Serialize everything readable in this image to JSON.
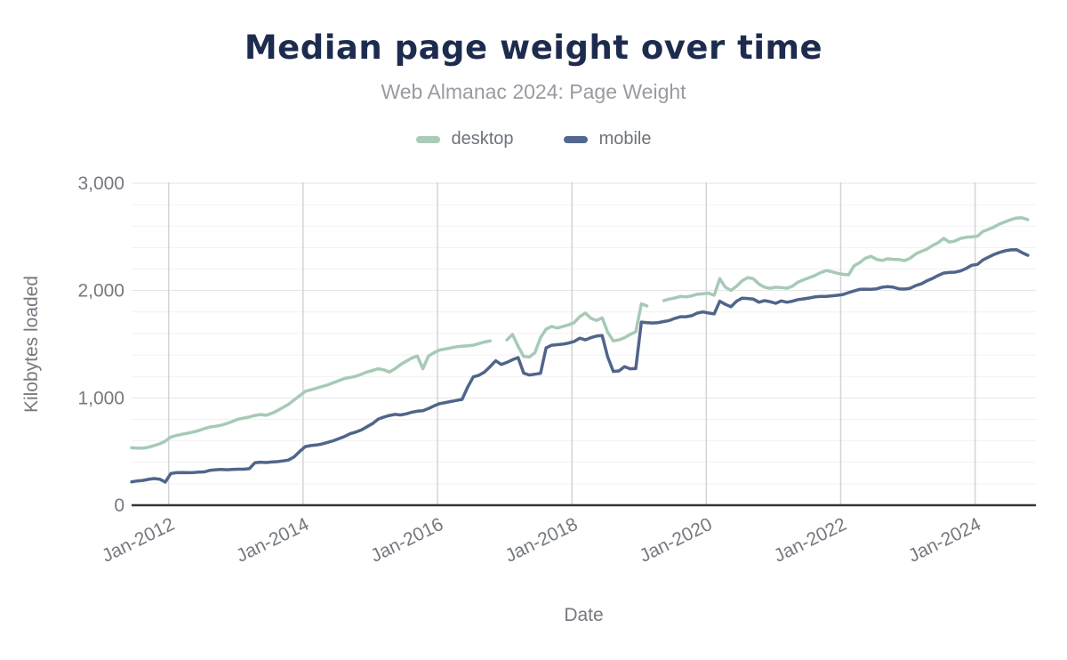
{
  "header": {
    "title": "Median page weight over time",
    "subtitle": "Web Almanac 2024: Page Weight"
  },
  "legend": [
    {
      "label": "desktop",
      "color": "#a9cbb7"
    },
    {
      "label": "mobile",
      "color": "#52688c"
    }
  ],
  "chart_data": {
    "type": "line",
    "title": "Median page weight over time",
    "subtitle": "Web Almanac 2024: Page Weight",
    "xlabel": "Date",
    "ylabel": "Kilobytes loaded",
    "ylim": [
      0,
      3000
    ],
    "y_ticks": [
      {
        "label": "0",
        "value": 0
      },
      {
        "label": "1,000",
        "value": 1000
      },
      {
        "label": "2,000",
        "value": 2000
      },
      {
        "label": "3,000",
        "value": 3000
      }
    ],
    "x_ticks": [
      {
        "label": "Jan-2012",
        "year": 2012
      },
      {
        "label": "Jan-2014",
        "year": 2014
      },
      {
        "label": "Jan-2016",
        "year": 2016
      },
      {
        "label": "Jan-2018",
        "year": 2018
      },
      {
        "label": "Jan-2020",
        "year": 2020
      },
      {
        "label": "Jan-2022",
        "year": 2022
      },
      {
        "label": "Jan-2024",
        "year": 2024
      }
    ],
    "grid": {
      "vertical_at_ticks": true,
      "horizontal_minor_step": 200,
      "horizontal_major_step": 1000
    },
    "x_start": 2011.45,
    "x_step": 0.0833333,
    "x_unit": "monthly, Jun 2011 through Oct 2024; null = gap in data",
    "series": [
      {
        "name": "desktop",
        "color": "#a6cab6",
        "values": [
          535,
          533,
          531,
          540,
          556,
          572,
          597,
          636,
          650,
          661,
          671,
          682,
          696,
          714,
          729,
          736,
          746,
          762,
          781,
          801,
          812,
          822,
          836,
          845,
          838,
          856,
          881,
          911,
          941,
          981,
          1021,
          1062,
          1076,
          1091,
          1106,
          1121,
          1141,
          1161,
          1181,
          1191,
          1201,
          1221,
          1241,
          1256,
          1271,
          1261,
          1241,
          1271,
          1311,
          1341,
          1371,
          1391,
          1272,
          1391,
          1421,
          1446,
          1456,
          1466,
          1476,
          1481,
          1486,
          1491,
          1506,
          1521,
          1531,
          null,
          null,
          1541,
          1591,
          1481,
          1386,
          1381,
          1421,
          1561,
          1641,
          1666,
          1651,
          1666,
          1681,
          1701,
          1756,
          1791,
          1741,
          1721,
          1746,
          1611,
          1531,
          1541,
          1561,
          1591,
          1616,
          1876,
          1856,
          null,
          null,
          1906,
          1921,
          1931,
          1946,
          1941,
          1951,
          1966,
          1971,
          1976,
          1956,
          2111,
          2031,
          2001,
          2041,
          2091,
          2121,
          2111,
          2061,
          2031,
          2021,
          2031,
          2029,
          2021,
          2041,
          2079,
          2101,
          2121,
          2141,
          2166,
          2186,
          2176,
          2161,
          2151,
          2146,
          2231,
          2261,
          2301,
          2319,
          2291,
          2281,
          2296,
          2291,
          2289,
          2279,
          2301,
          2341,
          2366,
          2386,
          2421,
          2446,
          2486,
          2451,
          2461,
          2486,
          2496,
          2501,
          2506,
          2551,
          2571,
          2593,
          2621,
          2641,
          2661,
          2676,
          2678,
          2661
        ]
      },
      {
        "name": "mobile",
        "color": "#50658a",
        "values": [
          218,
          226,
          231,
          241,
          249,
          243,
          216,
          296,
          303,
          305,
          303,
          305,
          308,
          311,
          326,
          331,
          333,
          331,
          333,
          336,
          336,
          341,
          396,
          401,
          398,
          403,
          406,
          413,
          421,
          451,
          501,
          546,
          556,
          561,
          571,
          586,
          601,
          621,
          641,
          666,
          681,
          701,
          731,
          761,
          801,
          821,
          836,
          846,
          841,
          851,
          866,
          876,
          881,
          901,
          926,
          946,
          956,
          966,
          976,
          986,
          1101,
          1196,
          1211,
          1241,
          1291,
          1346,
          1311,
          1331,
          1356,
          1376,
          1231,
          1213,
          1221,
          1229,
          1466,
          1491,
          1496,
          1501,
          1511,
          1526,
          1556,
          1541,
          1561,
          1576,
          1581,
          1381,
          1246,
          1251,
          1291,
          1271,
          1273,
          1706,
          1701,
          1698,
          1701,
          1711,
          1721,
          1741,
          1756,
          1756,
          1766,
          1791,
          1801,
          1791,
          1783,
          1901,
          1871,
          1849,
          1901,
          1929,
          1926,
          1921,
          1891,
          1906,
          1896,
          1881,
          1904,
          1891,
          1901,
          1916,
          1923,
          1931,
          1941,
          1946,
          1946,
          1951,
          1956,
          1963,
          1981,
          1996,
          2011,
          2013,
          2011,
          2016,
          2031,
          2036,
          2031,
          2016,
          2014,
          2021,
          2046,
          2063,
          2091,
          2113,
          2141,
          2163,
          2169,
          2171,
          2183,
          2206,
          2236,
          2243,
          2286,
          2311,
          2337,
          2356,
          2371,
          2379,
          2381,
          2353,
          2329
        ]
      }
    ]
  }
}
